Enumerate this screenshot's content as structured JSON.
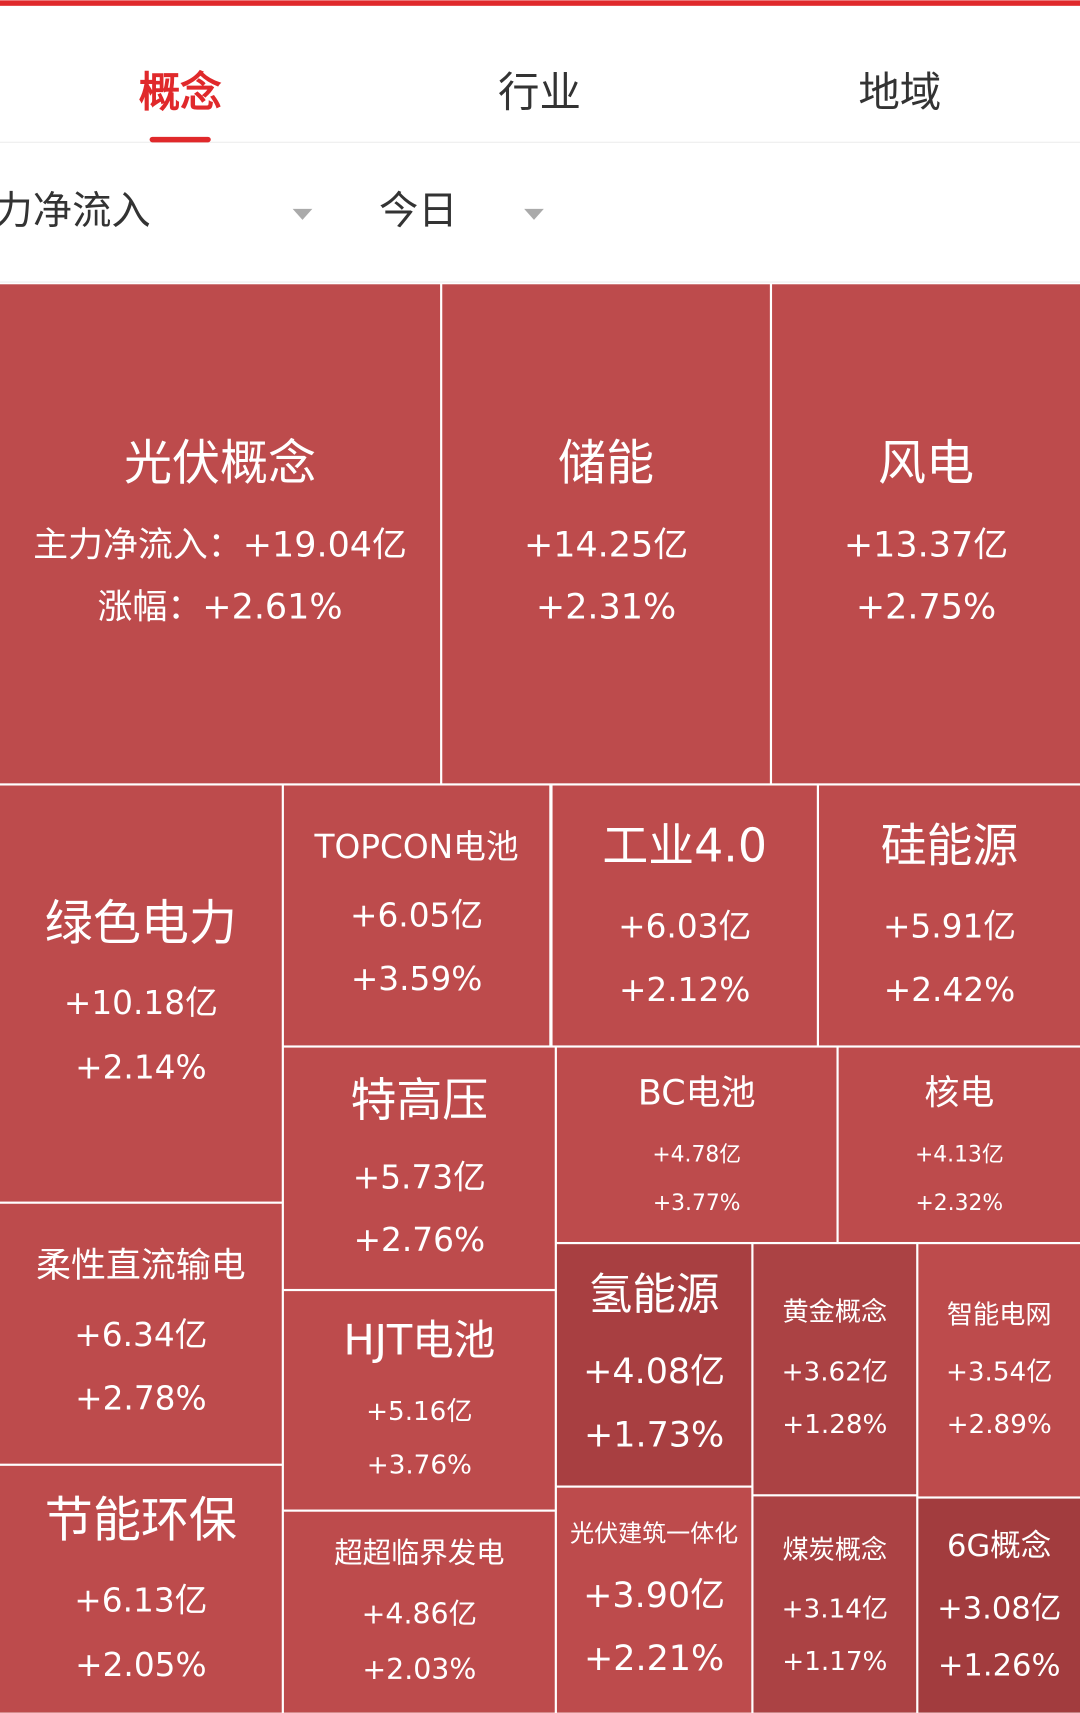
{
  "tabs": [
    {
      "label": "概念",
      "active": true
    },
    {
      "label": "行业",
      "active": false
    },
    {
      "label": "地域",
      "active": false
    }
  ],
  "filters": [
    "主力净流入",
    "今日"
  ],
  "tiles": [
    {
      "name": "光伏概念",
      "flow": "主力净流入：+19.04亿",
      "change": "涨幅：+2.61%",
      "color": "#bd4b4c"
    },
    {
      "name": "储能",
      "flow": "+14.25亿",
      "change": "+2.31%",
      "color": "#bd4b4c"
    },
    {
      "name": "风电",
      "flow": "+13.37亿",
      "change": "+2.75%",
      "color": "#bd4b4c"
    },
    {
      "name": "绿色电力",
      "flow": "+10.18亿",
      "change": "+2.14%",
      "color": "#bd4b4c"
    },
    {
      "name": "TOPCON电池",
      "flow": "+6.05亿",
      "change": "+3.59%",
      "color": "#bd4b4c"
    },
    {
      "name": "工业4.0",
      "flow": "+6.03亿",
      "change": "+2.12%",
      "color": "#bd4b4c"
    },
    {
      "name": "硅能源",
      "flow": "+5.91亿",
      "change": "+2.42%",
      "color": "#bd4b4c"
    },
    {
      "name": "特高压",
      "flow": "+5.73亿",
      "change": "+2.76%",
      "color": "#bd4b4c"
    },
    {
      "name": "BC电池",
      "flow": "+4.78亿",
      "change": "+3.77%",
      "color": "#bd4b4c"
    },
    {
      "name": "核电",
      "flow": "+4.13亿",
      "change": "+2.32%",
      "color": "#bd4b4c"
    },
    {
      "name": "柔性直流输电",
      "flow": "+6.34亿",
      "change": "+2.78%",
      "color": "#bd4b4c"
    },
    {
      "name": "HJT电池",
      "flow": "+5.16亿",
      "change": "+3.76%",
      "color": "#bd4b4c"
    },
    {
      "name": "氢能源",
      "flow": "+4.08亿",
      "change": "+1.73%",
      "color": "#a83f41"
    },
    {
      "name": "黄金概念",
      "flow": "+3.62亿",
      "change": "+1.28%",
      "color": "#ab4244"
    },
    {
      "name": "智能电网",
      "flow": "+3.54亿",
      "change": "+2.89%",
      "color": "#bd4b4c"
    },
    {
      "name": "节能环保",
      "flow": "+6.13亿",
      "change": "+2.05%",
      "color": "#bd4b4c"
    },
    {
      "name": "超超临界发电",
      "flow": "+4.86亿",
      "change": "+2.03%",
      "color": "#bd4b4c"
    },
    {
      "name": "光伏建筑一体化",
      "flow": "+3.90亿",
      "change": "+2.21%",
      "color": "#bd4b4c"
    },
    {
      "name": "煤炭概念",
      "flow": "+3.14亿",
      "change": "+1.17%",
      "color": "#ab4244"
    },
    {
      "name": "6G概念",
      "flow": "+3.08亿",
      "change": "+1.26%",
      "color": "#a23c3e"
    }
  ]
}
